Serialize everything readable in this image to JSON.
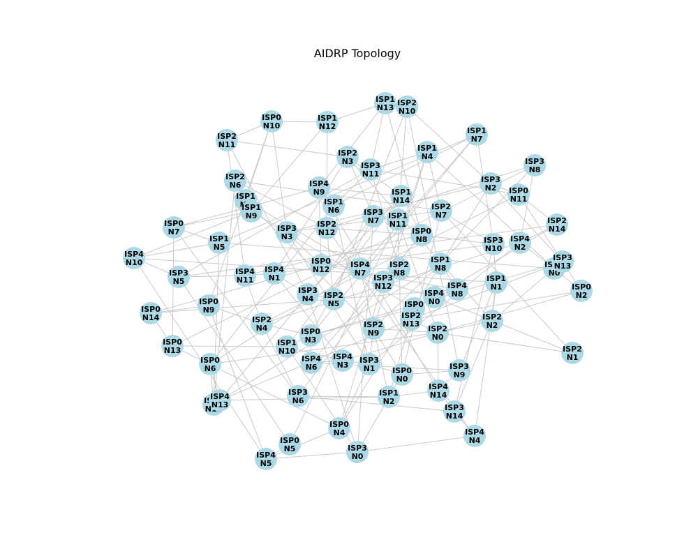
{
  "title": "AIDRP Topology",
  "colors": {
    "node": "#add8e6",
    "edge": "#c8c8c8",
    "label": "#000000",
    "background": "#ffffff"
  },
  "nodes": [
    {
      "id": "ISP0-N0",
      "line1": "ISP0",
      "line2": "N0"
    },
    {
      "id": "ISP0-N1",
      "line1": "ISP0",
      "line2": "N1"
    },
    {
      "id": "ISP0-N2",
      "line1": "ISP0",
      "line2": "N2"
    },
    {
      "id": "ISP0-N3",
      "line1": "ISP0",
      "line2": "N3"
    },
    {
      "id": "ISP0-N4",
      "line1": "ISP0",
      "line2": "N4"
    },
    {
      "id": "ISP0-N5",
      "line1": "ISP0",
      "line2": "N5"
    },
    {
      "id": "ISP0-N6",
      "line1": "ISP0",
      "line2": "N6"
    },
    {
      "id": "ISP0-N7",
      "line1": "ISP0",
      "line2": "N7"
    },
    {
      "id": "ISP0-N8",
      "line1": "ISP0",
      "line2": "N8"
    },
    {
      "id": "ISP0-N9",
      "line1": "ISP0",
      "line2": "N9"
    },
    {
      "id": "ISP0-N10",
      "line1": "ISP0",
      "line2": "N10"
    },
    {
      "id": "ISP0-N11",
      "line1": "ISP0",
      "line2": "N11"
    },
    {
      "id": "ISP0-N12",
      "line1": "ISP0",
      "line2": "N12"
    },
    {
      "id": "ISP0-N13",
      "line1": "ISP0",
      "line2": "N13"
    },
    {
      "id": "ISP0-N14",
      "line1": "ISP0",
      "line2": "N14"
    },
    {
      "id": "ISP1-N0",
      "line1": "ISP1",
      "line2": "N0"
    },
    {
      "id": "ISP1-N1",
      "line1": "ISP1",
      "line2": "N1"
    },
    {
      "id": "ISP1-N2",
      "line1": "ISP1",
      "line2": "N2"
    },
    {
      "id": "ISP1-N3",
      "line1": "ISP1",
      "line2": "N3"
    },
    {
      "id": "ISP1-N4",
      "line1": "ISP1",
      "line2": "N4"
    },
    {
      "id": "ISP1-N5",
      "line1": "ISP1",
      "line2": "N5"
    },
    {
      "id": "ISP1-N6",
      "line1": "ISP1",
      "line2": "N6"
    },
    {
      "id": "ISP1-N7",
      "line1": "ISP1",
      "line2": "N7"
    },
    {
      "id": "ISP1-N8",
      "line1": "ISP1",
      "line2": "N8"
    },
    {
      "id": "ISP1-N9",
      "line1": "ISP1",
      "line2": "N9"
    },
    {
      "id": "ISP1-N10",
      "line1": "ISP1",
      "line2": "N10"
    },
    {
      "id": "ISP1-N11",
      "line1": "ISP1",
      "line2": "N11"
    },
    {
      "id": "ISP1-N12",
      "line1": "ISP1",
      "line2": "N12"
    },
    {
      "id": "ISP1-N13",
      "line1": "ISP1",
      "line2": "N13"
    },
    {
      "id": "ISP1-N14",
      "line1": "ISP1",
      "line2": "N14"
    },
    {
      "id": "ISP2-N0",
      "line1": "ISP2",
      "line2": "N0"
    },
    {
      "id": "ISP2-N1",
      "line1": "ISP2",
      "line2": "N1"
    },
    {
      "id": "ISP2-N2",
      "line1": "ISP2",
      "line2": "N2"
    },
    {
      "id": "ISP2-N3",
      "line1": "ISP2",
      "line2": "N3"
    },
    {
      "id": "ISP2-N4",
      "line1": "ISP2",
      "line2": "N4"
    },
    {
      "id": "ISP2-N5",
      "line1": "ISP2",
      "line2": "N5"
    },
    {
      "id": "ISP2-N6",
      "line1": "ISP2",
      "line2": "N6"
    },
    {
      "id": "ISP2-N7",
      "line1": "ISP2",
      "line2": "N7"
    },
    {
      "id": "ISP2-N8",
      "line1": "ISP2",
      "line2": "N8"
    },
    {
      "id": "ISP2-N9",
      "line1": "ISP2",
      "line2": "N9"
    },
    {
      "id": "ISP2-N10",
      "line1": "ISP2",
      "line2": "N10"
    },
    {
      "id": "ISP2-N11",
      "line1": "ISP2",
      "line2": "N11"
    },
    {
      "id": "ISP2-N12",
      "line1": "ISP2",
      "line2": "N12"
    },
    {
      "id": "ISP2-N13",
      "line1": "ISP2",
      "line2": "N13"
    },
    {
      "id": "ISP2-N14",
      "line1": "ISP2",
      "line2": "N14"
    },
    {
      "id": "ISP3-N0",
      "line1": "ISP3",
      "line2": "N0"
    },
    {
      "id": "ISP3-N1",
      "line1": "ISP3",
      "line2": "N1"
    },
    {
      "id": "ISP3-N2",
      "line1": "ISP3",
      "line2": "N2"
    },
    {
      "id": "ISP3-N3",
      "line1": "ISP3",
      "line2": "N3"
    },
    {
      "id": "ISP3-N4",
      "line1": "ISP3",
      "line2": "N4"
    },
    {
      "id": "ISP3-N5",
      "line1": "ISP3",
      "line2": "N5"
    },
    {
      "id": "ISP3-N6",
      "line1": "ISP3",
      "line2": "N6"
    },
    {
      "id": "ISP3-N7",
      "line1": "ISP3",
      "line2": "N7"
    },
    {
      "id": "ISP3-N8",
      "line1": "ISP3",
      "line2": "N8"
    },
    {
      "id": "ISP3-N9",
      "line1": "ISP3",
      "line2": "N9"
    },
    {
      "id": "ISP3-N10",
      "line1": "ISP3",
      "line2": "N10"
    },
    {
      "id": "ISP3-N11",
      "line1": "ISP3",
      "line2": "N11"
    },
    {
      "id": "ISP3-N12",
      "line1": "ISP3",
      "line2": "N12"
    },
    {
      "id": "ISP3-N13",
      "line1": "ISP3",
      "line2": "N13"
    },
    {
      "id": "ISP3-N14",
      "line1": "ISP3",
      "line2": "N14"
    },
    {
      "id": "ISP4-N0",
      "line1": "ISP4",
      "line2": "N0"
    },
    {
      "id": "ISP4-N1",
      "line1": "ISP4",
      "line2": "N1"
    },
    {
      "id": "ISP4-N2",
      "line1": "ISP4",
      "line2": "N2"
    },
    {
      "id": "ISP4-N3",
      "line1": "ISP4",
      "line2": "N3"
    },
    {
      "id": "ISP4-N4",
      "line1": "ISP4",
      "line2": "N4"
    },
    {
      "id": "ISP4-N5",
      "line1": "ISP4",
      "line2": "N5"
    },
    {
      "id": "ISP4-N6",
      "line1": "ISP4",
      "line2": "N6"
    },
    {
      "id": "ISP4-N7",
      "line1": "ISP4",
      "line2": "N7"
    },
    {
      "id": "ISP4-N8",
      "line1": "ISP4",
      "line2": "N8"
    },
    {
      "id": "ISP4-N9",
      "line1": "ISP4",
      "line2": "N9"
    },
    {
      "id": "ISP4-N10",
      "line1": "ISP4",
      "line2": "N10"
    },
    {
      "id": "ISP4-N11",
      "line1": "ISP4",
      "line2": "N11"
    },
    {
      "id": "ISP4-N12",
      "line1": "ISP4",
      "line2": "N12"
    },
    {
      "id": "ISP4-N13",
      "line1": "ISP4",
      "line2": "N13"
    },
    {
      "id": "ISP4-N14",
      "line1": "ISP4",
      "line2": "N14"
    }
  ],
  "edges": [
    [
      "ISP0-N10",
      "ISP1-N12"
    ],
    [
      "ISP0-N10",
      "ISP2-N11"
    ],
    [
      "ISP0-N10",
      "ISP1-N3"
    ],
    [
      "ISP0-N10",
      "ISP3-N3"
    ],
    [
      "ISP0-N10",
      "ISP0-N9"
    ],
    [
      "ISP1-N13",
      "ISP2-N10"
    ],
    [
      "ISP1-N13",
      "ISP1-N12"
    ],
    [
      "ISP1-N13",
      "ISP3-N11"
    ],
    [
      "ISP1-N13",
      "ISP4-N9"
    ],
    [
      "ISP1-N13",
      "ISP0-N8"
    ],
    [
      "ISP2-N10",
      "ISP3-N2"
    ],
    [
      "ISP2-N10",
      "ISP1-N11"
    ],
    [
      "ISP2-N10",
      "ISP2-N5"
    ],
    [
      "ISP2-N10",
      "ISP3-N9"
    ],
    [
      "ISP1-N12",
      "ISP2-N12"
    ],
    [
      "ISP1-N12",
      "ISP1-N9"
    ],
    [
      "ISP2-N11",
      "ISP2-N3"
    ],
    [
      "ISP2-N11",
      "ISP4-N11"
    ],
    [
      "ISP2-N11",
      "ISP3-N4"
    ],
    [
      "ISP1-N7",
      "ISP1-N6"
    ],
    [
      "ISP1-N7",
      "ISP3-N10"
    ],
    [
      "ISP1-N7",
      "ISP4-N7"
    ],
    [
      "ISP1-N7",
      "ISP1-N5"
    ],
    [
      "ISP1-N7",
      "ISP0-N3"
    ],
    [
      "ISP1-N4",
      "ISP3-N11"
    ],
    [
      "ISP1-N4",
      "ISP2-N7"
    ],
    [
      "ISP1-N4",
      "ISP3-N12"
    ],
    [
      "ISP1-N4",
      "ISP2-N9"
    ],
    [
      "ISP1-N4",
      "ISP1-N0"
    ],
    [
      "ISP2-N3",
      "ISP1-N14"
    ],
    [
      "ISP2-N3",
      "ISP3-N7"
    ],
    [
      "ISP2-N3",
      "ISP4-N1"
    ],
    [
      "ISP2-N3",
      "ISP2-N2"
    ],
    [
      "ISP3-N8",
      "ISP4-N2"
    ],
    [
      "ISP3-N8",
      "ISP2-N12"
    ],
    [
      "ISP3-N8",
      "ISP1-N8"
    ],
    [
      "ISP3-N8",
      "ISP0-N13"
    ],
    [
      "ISP3-N11",
      "ISP1-N6"
    ],
    [
      "ISP3-N11",
      "ISP0-N11"
    ],
    [
      "ISP3-N11",
      "ISP3-N5"
    ],
    [
      "ISP3-N11",
      "ISP2-N8"
    ],
    [
      "ISP2-N6",
      "ISP1-N3"
    ],
    [
      "ISP2-N6",
      "ISP2-N12"
    ],
    [
      "ISP2-N6",
      "ISP2-N7"
    ],
    [
      "ISP2-N6",
      "ISP4-N12"
    ],
    [
      "ISP3-N2",
      "ISP0-N11"
    ],
    [
      "ISP3-N2",
      "ISP3-N3"
    ],
    [
      "ISP3-N2",
      "ISP0-N4"
    ],
    [
      "ISP3-N2",
      "ISP3-N13"
    ],
    [
      "ISP4-N9",
      "ISP1-N14"
    ],
    [
      "ISP4-N9",
      "ISP0-N7"
    ],
    [
      "ISP4-N9",
      "ISP0-N12"
    ],
    [
      "ISP4-N9",
      "ISP4-N14"
    ],
    [
      "ISP0-N11",
      "ISP2-N14"
    ],
    [
      "ISP0-N11",
      "ISP2-N4"
    ],
    [
      "ISP0-N11",
      "ISP0-N2"
    ],
    [
      "ISP1-N14",
      "ISP3-N4"
    ],
    [
      "ISP1-N14",
      "ISP0-N8"
    ],
    [
      "ISP1-N14",
      "ISP1-N10"
    ],
    [
      "ISP1-N3",
      "ISP1-N9"
    ],
    [
      "ISP1-N3",
      "ISP3-N12"
    ],
    [
      "ISP1-N3",
      "ISP2-N9"
    ],
    [
      "ISP1-N9",
      "ISP0-N7"
    ],
    [
      "ISP1-N9",
      "ISP4-N10"
    ],
    [
      "ISP1-N9",
      "ISP0-N1"
    ],
    [
      "ISP1-N6",
      "ISP2-N12"
    ],
    [
      "ISP1-N6",
      "ISP0-N6"
    ],
    [
      "ISP1-N6",
      "ISP3-N1"
    ],
    [
      "ISP3-N7",
      "ISP1-N11"
    ],
    [
      "ISP3-N7",
      "ISP0-N3"
    ],
    [
      "ISP3-N7",
      "ISP3-N0"
    ],
    [
      "ISP3-N7",
      "ISP4-N13"
    ],
    [
      "ISP2-N7",
      "ISP3-N10"
    ],
    [
      "ISP2-N7",
      "ISP3-N3"
    ],
    [
      "ISP2-N7",
      "ISP0-N0"
    ],
    [
      "ISP2-N7",
      "ISP2-N1"
    ],
    [
      "ISP2-N14",
      "ISP4-N2"
    ],
    [
      "ISP2-N14",
      "ISP4-N0"
    ],
    [
      "ISP2-N14",
      "ISP3-N5"
    ],
    [
      "ISP0-N7",
      "ISP1-N5"
    ],
    [
      "ISP0-N7",
      "ISP3-N6"
    ],
    [
      "ISP0-N7",
      "ISP0-N13"
    ],
    [
      "ISP1-N5",
      "ISP4-N10"
    ],
    [
      "ISP1-N5",
      "ISP4-N12"
    ],
    [
      "ISP1-N5",
      "ISP1-N0"
    ],
    [
      "ISP3-N3",
      "ISP0-N12"
    ],
    [
      "ISP3-N3",
      "ISP3-N1"
    ],
    [
      "ISP2-N12",
      "ISP0-N8"
    ],
    [
      "ISP2-N12",
      "ISP2-N5"
    ],
    [
      "ISP2-N12",
      "ISP4-N4"
    ],
    [
      "ISP1-N11",
      "ISP2-N8"
    ],
    [
      "ISP1-N11",
      "ISP2-N0"
    ],
    [
      "ISP1-N11",
      "ISP0-N5"
    ],
    [
      "ISP0-N8",
      "ISP3-N10"
    ],
    [
      "ISP0-N8",
      "ISP4-N11"
    ],
    [
      "ISP0-N8",
      "ISP4-N6"
    ],
    [
      "ISP3-N10",
      "ISP1-N1"
    ],
    [
      "ISP3-N10",
      "ISP4-N1"
    ],
    [
      "ISP3-N10",
      "ISP3-N14"
    ],
    [
      "ISP4-N2",
      "ISP1-N0"
    ],
    [
      "ISP4-N2",
      "ISP2-N4"
    ],
    [
      "ISP4-N2",
      "ISP3-N1"
    ],
    [
      "ISP4-N10",
      "ISP3-N5"
    ],
    [
      "ISP4-N10",
      "ISP1-N1"
    ],
    [
      "ISP4-N10",
      "ISP4-N5"
    ],
    [
      "ISP0-N12",
      "ISP4-N7"
    ],
    [
      "ISP0-N12",
      "ISP0-N14"
    ],
    [
      "ISP0-N12",
      "ISP4-N8"
    ],
    [
      "ISP4-N7",
      "ISP2-N8"
    ],
    [
      "ISP4-N7",
      "ISP0-N6"
    ],
    [
      "ISP4-N7",
      "ISP1-N2"
    ],
    [
      "ISP2-N8",
      "ISP3-N12"
    ],
    [
      "ISP2-N8",
      "ISP0-N0"
    ],
    [
      "ISP3-N12",
      "ISP4-N0"
    ],
    [
      "ISP3-N12",
      "ISP3-N6"
    ],
    [
      "ISP3-N12",
      "ISP0-N4"
    ],
    [
      "ISP1-N8",
      "ISP4-N8"
    ],
    [
      "ISP1-N8",
      "ISP2-N9"
    ],
    [
      "ISP1-N8",
      "ISP4-N12"
    ],
    [
      "ISP3-N13",
      "ISP1-N0"
    ],
    [
      "ISP3-N13",
      "ISP0-N3"
    ],
    [
      "ISP3-N13",
      "ISP2-N13"
    ],
    [
      "ISP1-N0",
      "ISP0-N2"
    ],
    [
      "ISP1-N0",
      "ISP2-N2"
    ],
    [
      "ISP0-N2",
      "ISP2-N13"
    ],
    [
      "ISP0-N2",
      "ISP4-N3"
    ],
    [
      "ISP1-N1",
      "ISP2-N2"
    ],
    [
      "ISP1-N1",
      "ISP3-N9"
    ],
    [
      "ISP1-N1",
      "ISP4-N4"
    ],
    [
      "ISP3-N5",
      "ISP4-N11"
    ],
    [
      "ISP3-N5",
      "ISP0-N5"
    ],
    [
      "ISP4-N11",
      "ISP4-N1"
    ],
    [
      "ISP4-N11",
      "ISP2-N4"
    ],
    [
      "ISP4-N1",
      "ISP3-N4"
    ],
    [
      "ISP4-N1",
      "ISP4-N3"
    ],
    [
      "ISP3-N4",
      "ISP2-N5"
    ],
    [
      "ISP3-N4",
      "ISP3-N0"
    ],
    [
      "ISP4-N8",
      "ISP4-N0"
    ],
    [
      "ISP4-N8",
      "ISP0-N14"
    ],
    [
      "ISP4-N0",
      "ISP0-N1"
    ],
    [
      "ISP4-N0",
      "ISP2-N1"
    ],
    [
      "ISP0-N1",
      "ISP2-N13"
    ],
    [
      "ISP0-N1",
      "ISP0-N3"
    ],
    [
      "ISP0-N1",
      "ISP1-N2"
    ],
    [
      "ISP2-N13",
      "ISP2-N0"
    ],
    [
      "ISP2-N13",
      "ISP4-N13"
    ],
    [
      "ISP0-N9",
      "ISP0-N14"
    ],
    [
      "ISP0-N9",
      "ISP2-N4"
    ],
    [
      "ISP0-N9",
      "ISP4-N5"
    ],
    [
      "ISP2-N2",
      "ISP2-N0"
    ],
    [
      "ISP2-N2",
      "ISP3-N14"
    ],
    [
      "ISP0-N14",
      "ISP0-N13"
    ],
    [
      "ISP0-N13",
      "ISP1-N10"
    ],
    [
      "ISP0-N13",
      "ISP0-N4"
    ],
    [
      "ISP2-N4",
      "ISP0-N3"
    ],
    [
      "ISP2-N4",
      "ISP3-N6"
    ],
    [
      "ISP2-N9",
      "ISP2-N0"
    ],
    [
      "ISP2-N9",
      "ISP3-N1"
    ],
    [
      "ISP2-N9",
      "ISP0-N0"
    ],
    [
      "ISP0-N3",
      "ISP1-N10"
    ],
    [
      "ISP0-N3",
      "ISP4-N6"
    ],
    [
      "ISP2-N0",
      "ISP0-N6"
    ],
    [
      "ISP2-N0",
      "ISP2-N1"
    ],
    [
      "ISP2-N0",
      "ISP4-N14"
    ],
    [
      "ISP1-N10",
      "ISP4-N3"
    ],
    [
      "ISP1-N10",
      "ISP3-N0"
    ],
    [
      "ISP4-N6",
      "ISP4-N3"
    ],
    [
      "ISP4-N6",
      "ISP3-N9"
    ],
    [
      "ISP0-N6",
      "ISP4-N12"
    ],
    [
      "ISP0-N6",
      "ISP4-N13"
    ],
    [
      "ISP4-N3",
      "ISP3-N1"
    ],
    [
      "ISP3-N1",
      "ISP0-N0"
    ],
    [
      "ISP3-N1",
      "ISP0-N4"
    ],
    [
      "ISP3-N9",
      "ISP0-N0"
    ],
    [
      "ISP3-N9",
      "ISP4-N14"
    ],
    [
      "ISP0-N0",
      "ISP1-N2"
    ],
    [
      "ISP0-N0",
      "ISP3-N0"
    ],
    [
      "ISP4-N12",
      "ISP4-N13"
    ],
    [
      "ISP4-N13",
      "ISP1-N2"
    ],
    [
      "ISP3-N6",
      "ISP1-N2"
    ],
    [
      "ISP3-N6",
      "ISP3-N14"
    ],
    [
      "ISP1-N2",
      "ISP4-N14"
    ],
    [
      "ISP4-N14",
      "ISP3-N14"
    ],
    [
      "ISP3-N14",
      "ISP4-N4"
    ],
    [
      "ISP0-N4",
      "ISP4-N5"
    ],
    [
      "ISP0-N5",
      "ISP4-N5"
    ],
    [
      "ISP3-N0",
      "ISP4-N4"
    ],
    [
      "ISP4-N5",
      "ISP3-N0"
    ]
  ]
}
